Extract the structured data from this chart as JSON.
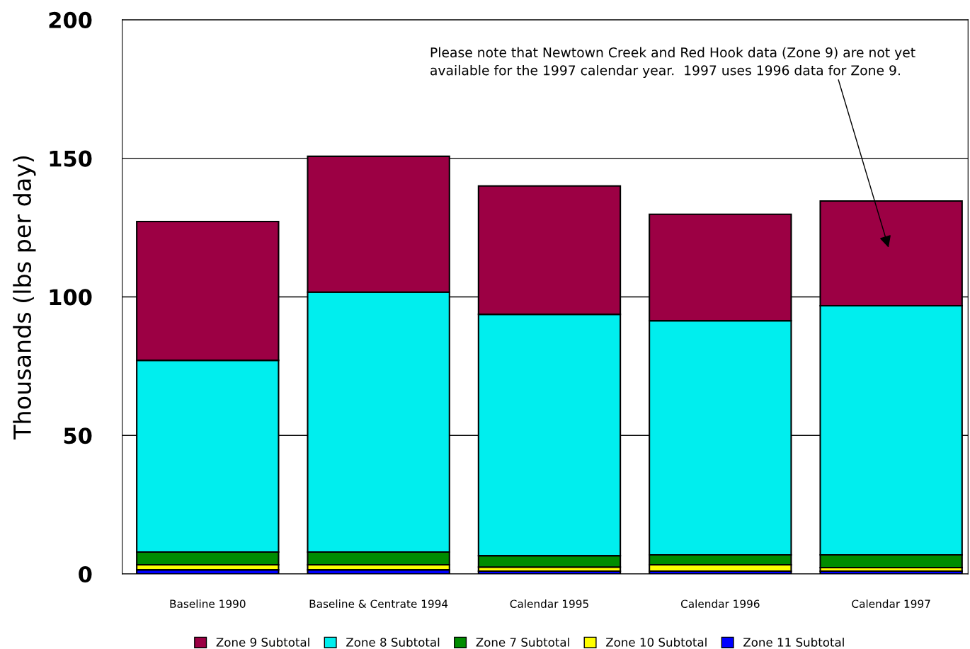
{
  "chart_data": {
    "type": "bar",
    "stacked": true,
    "ylabel": "Thousands (lbs per day)",
    "categories": [
      "Baseline 1990",
      "Baseline & Centrate 1994",
      "Calendar 1995",
      "Calendar 1996",
      "Calendar 1997"
    ],
    "series": [
      {
        "name": "Zone 11 Subtotal",
        "color": "#0000ff",
        "values": [
          1.5,
          1.5,
          1.0,
          1.0,
          1.0
        ]
      },
      {
        "name": "Zone 10 Subtotal",
        "color": "#ffff00",
        "values": [
          1.8,
          1.8,
          1.5,
          2.3,
          1.3
        ]
      },
      {
        "name": "Zone 7 Subtotal",
        "color": "#008c00",
        "values": [
          4.6,
          4.6,
          4.1,
          3.6,
          4.6
        ]
      },
      {
        "name": "Zone 8 Subtotal",
        "color": "#00eeee",
        "values": [
          69.2,
          93.8,
          87.1,
          84.5,
          89.9
        ]
      },
      {
        "name": "Zone 9 Subtotal",
        "color": "#9c0044",
        "values": [
          50.1,
          49.0,
          46.3,
          38.4,
          37.8
        ]
      }
    ],
    "ylim": [
      0,
      200
    ],
    "yticks": [
      0,
      50,
      100,
      150,
      200
    ],
    "grid": "y",
    "legend": "bottom",
    "annotations": [
      "Please note that Newtown Creek and Red Hook data (Zone 9) are not yet\navailable for the 1997 calendar year.  1997 uses 1996 data for Zone 9."
    ]
  }
}
